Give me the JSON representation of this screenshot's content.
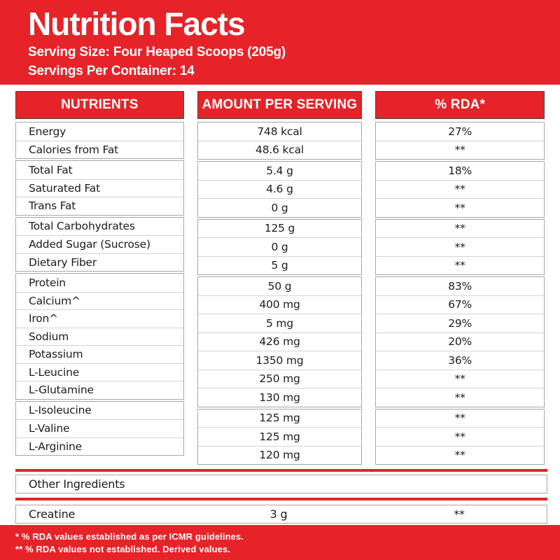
{
  "colors": {
    "brand_red": "#E52329",
    "text_dark": "#1C1C1C",
    "box_border": "#A6A6A6",
    "row_divider": "#D4D4D4",
    "header_box_border": "#4A4A4A",
    "white": "#FFFFFF"
  },
  "header": {
    "title": "Nutrition Facts",
    "serving_size": "Serving Size: Four Heaped Scoops (205g)",
    "servings_per_container": "Servings Per Container: 14"
  },
  "table": {
    "columns": [
      "NUTRIENTS",
      "AMOUNT PER SERVING",
      "% RDA*"
    ],
    "groups": [
      {
        "rows": [
          {
            "nutrient": "Energy",
            "amount": "748 kcal",
            "rda": "27%"
          },
          {
            "nutrient": "Calories from Fat",
            "amount": "48.6 kcal",
            "rda": "**"
          }
        ]
      },
      {
        "rows": [
          {
            "nutrient": "Total Fat",
            "amount": "5.4 g",
            "rda": "18%"
          },
          {
            "nutrient": "Saturated Fat",
            "amount": "4.6 g",
            "rda": "**"
          },
          {
            "nutrient": "Trans Fat",
            "amount": "0 g",
            "rda": "**"
          }
        ]
      },
      {
        "rows": [
          {
            "nutrient": "Total Carbohydrates",
            "amount": "125 g",
            "rda": "**"
          },
          {
            "nutrient": "Added Sugar (Sucrose)",
            "amount": "0 g",
            "rda": "**"
          },
          {
            "nutrient": "Dietary Fiber",
            "amount": "5 g",
            "rda": "**"
          }
        ]
      },
      {
        "rows": [
          {
            "nutrient": "Protein",
            "amount": "50 g",
            "rda": "83%"
          },
          {
            "nutrient": "Calcium^",
            "amount": "400 mg",
            "rda": "67%"
          },
          {
            "nutrient": "Iron^",
            "amount": "5 mg",
            "rda": "29%"
          },
          {
            "nutrient": "Sodium",
            "amount": "426 mg",
            "rda": "20%"
          },
          {
            "nutrient": "Potassium",
            "amount": "1350 mg",
            "rda": "36%"
          },
          {
            "nutrient": "L-Leucine",
            "amount": "250 mg",
            "rda": "**"
          },
          {
            "nutrient": "L-Glutamine",
            "amount": "130 mg",
            "rda": "**"
          }
        ]
      },
      {
        "rows": [
          {
            "nutrient": "L-Isoleucine",
            "amount": "125 mg",
            "rda": "**"
          },
          {
            "nutrient": "L-Valine",
            "amount": "125 mg",
            "rda": "**"
          },
          {
            "nutrient": "L-Arginine",
            "amount": "120 mg",
            "rda": "**"
          }
        ]
      }
    ]
  },
  "other_ingredients": {
    "section_label": "Other Ingredients",
    "row": {
      "nutrient": "Creatine",
      "amount": "3 g",
      "rda": "**"
    }
  },
  "footnotes": [
    "* % RDA values established as per ICMR guidelines.",
    "** % RDA values not established. Derived values."
  ]
}
